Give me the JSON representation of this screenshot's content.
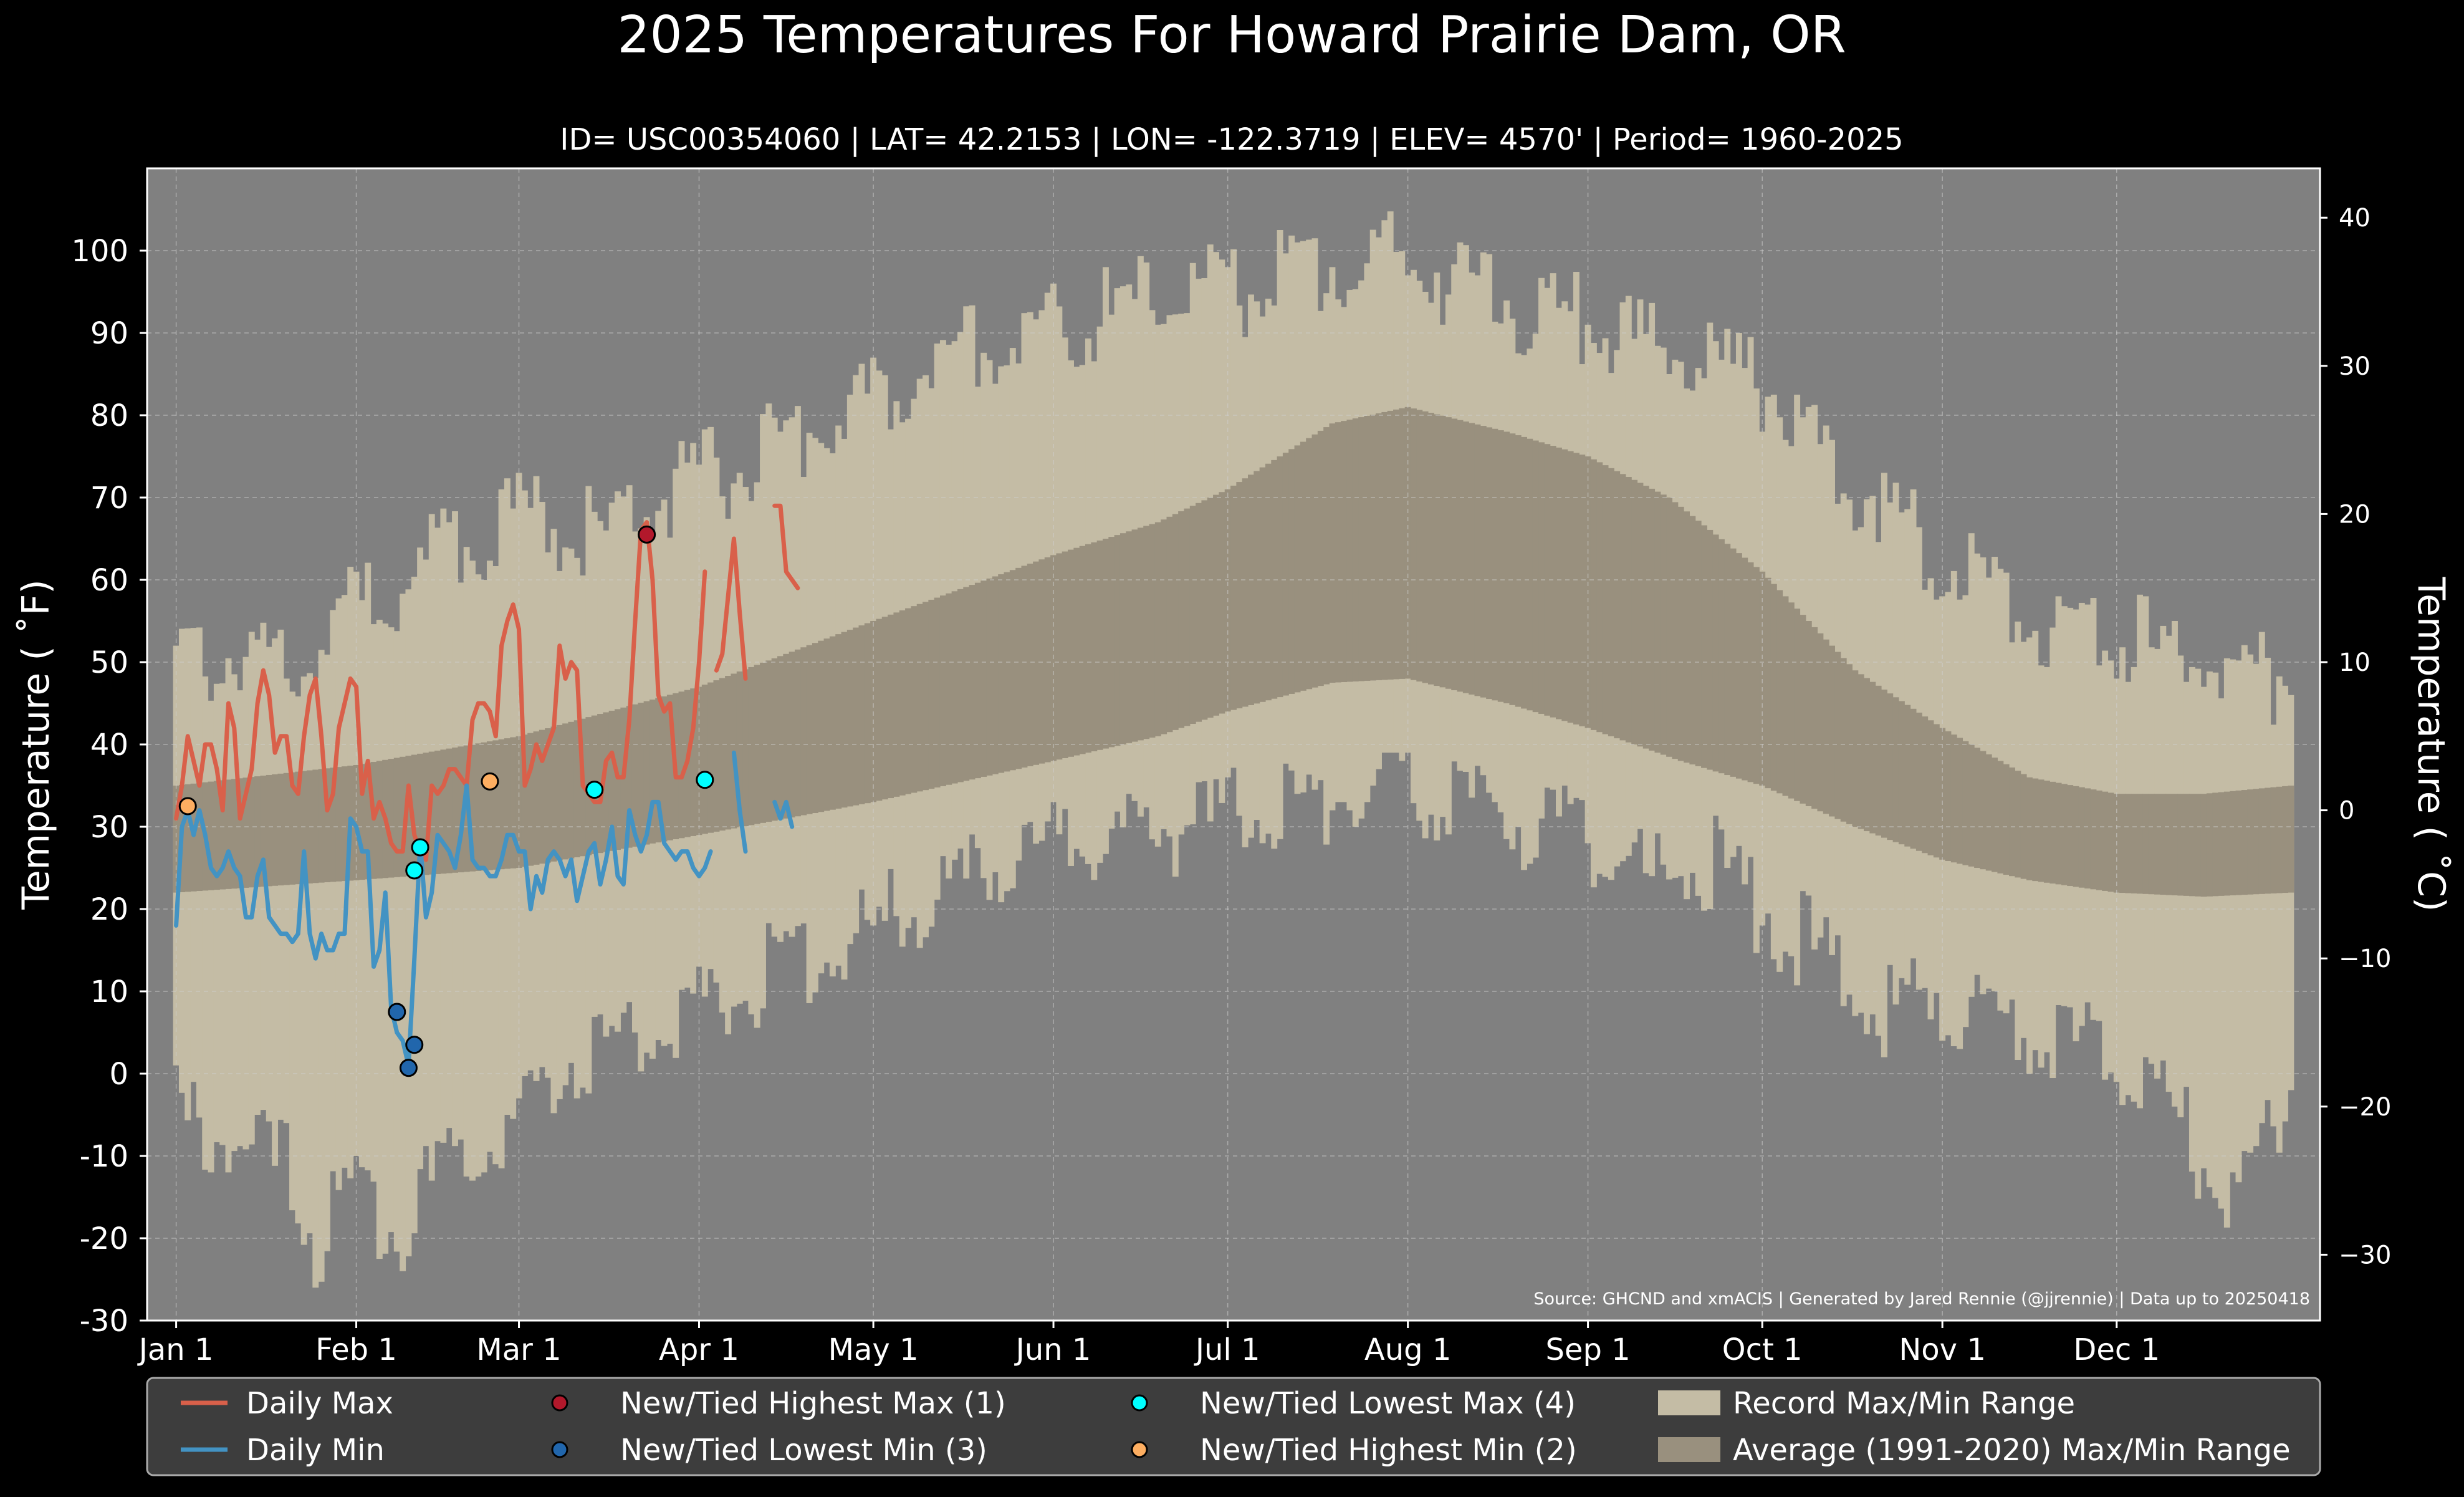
{
  "chart_data": {
    "type": "line",
    "title": "2025 Temperatures For Howard Prairie Dam, OR",
    "subtitle": "ID= USC00354060 | LAT= 42.2153 | LON= -122.3719 | ELEV= 4570' | Period= 1960-2025",
    "ylabel_left": "Temperature ( ˚F)",
    "ylabel_right": "Temperature ( ˚C)",
    "source": "Source: GHCND and xmACIS | Generated by Jared Rennie (@jjrennie) | Data up to 20250418",
    "ylim_f": [
      -30,
      110
    ],
    "yticks_f": [
      -30,
      -20,
      -10,
      0,
      10,
      20,
      30,
      40,
      50,
      60,
      70,
      80,
      90,
      100
    ],
    "ytick_labels_f": [
      "-30",
      "-20",
      "-10",
      "0",
      "10",
      "20",
      "30",
      "40",
      "50",
      "60",
      "70",
      "80",
      "90",
      "100"
    ],
    "yticks_c": [
      -30,
      -20,
      -10,
      0,
      10,
      20,
      30,
      40
    ],
    "ytick_labels_c": [
      "−30",
      "−20",
      "−10",
      "0",
      "10",
      "20",
      "30",
      "40"
    ],
    "xlim_day": [
      -4,
      370
    ],
    "xticks_day": [
      1,
      32,
      60,
      91,
      121,
      152,
      182,
      213,
      244,
      274,
      305,
      335
    ],
    "xtick_labels": [
      "Jan 1",
      "Feb 1",
      "Mar 1",
      "Apr 1",
      "May 1",
      "Jun 1",
      "Jul 1",
      "Aug 1",
      "Sep 1",
      "Oct 1",
      "Nov 1",
      "Dec 1"
    ],
    "grid": true,
    "legend_position": "bottom",
    "colors": {
      "background": "#000000",
      "plot_background": "#808080",
      "record_range": "#c4bca5",
      "average_range": "#99907e",
      "daily_max": "#d9604a",
      "daily_min": "#4393c3",
      "highest_max": "#b2182b",
      "lowest_min": "#2166ac",
      "lowest_max": "#00ffff",
      "highest_min": "#fdae61",
      "legend_bg": "#3d3d3d"
    },
    "record_max_anchors": [
      [
        1,
        50
      ],
      [
        20,
        51
      ],
      [
        32,
        56
      ],
      [
        45,
        63
      ],
      [
        60,
        68
      ],
      [
        75,
        66
      ],
      [
        91,
        72
      ],
      [
        105,
        76
      ],
      [
        121,
        82
      ],
      [
        135,
        88
      ],
      [
        152,
        90
      ],
      [
        170,
        94
      ],
      [
        182,
        95
      ],
      [
        200,
        98
      ],
      [
        213,
        99
      ],
      [
        225,
        95
      ],
      [
        244,
        91
      ],
      [
        258,
        88
      ],
      [
        274,
        84
      ],
      [
        290,
        72
      ],
      [
        305,
        63
      ],
      [
        320,
        56
      ],
      [
        335,
        53
      ],
      [
        350,
        50
      ],
      [
        365,
        48
      ]
    ],
    "record_min_anchors": [
      [
        1,
        -5
      ],
      [
        10,
        -8
      ],
      [
        20,
        -12
      ],
      [
        25,
        -20
      ],
      [
        32,
        -15
      ],
      [
        40,
        -18
      ],
      [
        50,
        -10
      ],
      [
        60,
        -5
      ],
      [
        70,
        2
      ],
      [
        80,
        5
      ],
      [
        91,
        8
      ],
      [
        105,
        13
      ],
      [
        121,
        18
      ],
      [
        135,
        22
      ],
      [
        152,
        28
      ],
      [
        165,
        29
      ],
      [
        182,
        31
      ],
      [
        200,
        34
      ],
      [
        213,
        34
      ],
      [
        228,
        32
      ],
      [
        244,
        28
      ],
      [
        255,
        24
      ],
      [
        265,
        26
      ],
      [
        274,
        20
      ],
      [
        285,
        14
      ],
      [
        295,
        8
      ],
      [
        305,
        10
      ],
      [
        320,
        5
      ],
      [
        335,
        3
      ],
      [
        345,
        -5
      ],
      [
        355,
        -18
      ],
      [
        365,
        0
      ]
    ],
    "avg_max_anchors": [
      [
        1,
        35
      ],
      [
        32,
        37.5
      ],
      [
        60,
        41
      ],
      [
        91,
        47
      ],
      [
        121,
        55
      ],
      [
        152,
        63
      ],
      [
        170,
        67
      ],
      [
        182,
        71
      ],
      [
        200,
        79
      ],
      [
        213,
        81
      ],
      [
        230,
        78
      ],
      [
        244,
        75
      ],
      [
        258,
        70
      ],
      [
        274,
        61
      ],
      [
        290,
        49
      ],
      [
        305,
        42
      ],
      [
        320,
        36
      ],
      [
        335,
        34
      ],
      [
        350,
        34
      ],
      [
        365,
        35
      ]
    ],
    "avg_min_anchors": [
      [
        1,
        22
      ],
      [
        32,
        23.5
      ],
      [
        60,
        25
      ],
      [
        91,
        29
      ],
      [
        121,
        33
      ],
      [
        152,
        38
      ],
      [
        170,
        41
      ],
      [
        182,
        44
      ],
      [
        200,
        47.5
      ],
      [
        213,
        48
      ],
      [
        230,
        45
      ],
      [
        244,
        42
      ],
      [
        260,
        38
      ],
      [
        274,
        35
      ],
      [
        290,
        30
      ],
      [
        305,
        26
      ],
      [
        320,
        23.5
      ],
      [
        335,
        22
      ],
      [
        350,
        21.5
      ],
      [
        365,
        22
      ]
    ],
    "series": [
      {
        "name": "Daily Max",
        "x": [
          1,
          2,
          3,
          4,
          5,
          6,
          7,
          8,
          9,
          10,
          11,
          12,
          13,
          14,
          15,
          16,
          17,
          18,
          19,
          20,
          21,
          22,
          23,
          24,
          25,
          26,
          27,
          28,
          29,
          30,
          31,
          32,
          33,
          34,
          35,
          36,
          37,
          38,
          39,
          40,
          41,
          42,
          43,
          44,
          45,
          46,
          47,
          48,
          49,
          50,
          51,
          52,
          53,
          54,
          55,
          56,
          57,
          58,
          59,
          60,
          61,
          62,
          63,
          64,
          65,
          66,
          67,
          68,
          69,
          70,
          71,
          72,
          73,
          74,
          75,
          76,
          77,
          78,
          79,
          80,
          81,
          82,
          83,
          84,
          85,
          86,
          87,
          88,
          89,
          90,
          91,
          92,
          93,
          94,
          95,
          96,
          97,
          98,
          99,
          100,
          101,
          102,
          103,
          104,
          105,
          106,
          107,
          108
        ],
        "y": [
          31,
          35,
          41,
          38,
          35,
          40,
          40,
          37,
          32,
          45,
          42,
          31,
          34,
          37,
          45,
          49,
          46,
          39,
          41,
          41,
          35,
          34,
          41,
          46,
          48,
          41,
          32,
          34,
          42,
          45,
          48,
          47,
          34,
          38,
          31,
          33,
          31,
          28,
          27,
          27,
          35,
          29,
          27,
          26,
          35,
          34,
          35,
          37,
          37,
          36,
          35,
          43,
          45,
          45,
          44,
          41,
          52,
          55,
          57,
          54,
          35,
          37,
          40,
          38,
          40,
          42,
          52,
          48,
          50,
          49,
          35,
          34,
          33,
          33,
          38,
          39,
          36,
          36,
          43,
          55,
          66,
          67,
          60,
          46,
          44,
          45,
          36,
          36,
          38,
          42,
          50,
          61,
          null,
          49,
          51,
          58,
          65,
          56,
          48,
          null,
          null,
          null,
          null,
          69,
          69,
          61,
          60,
          59
        ]
      },
      {
        "name": "Daily Min",
        "x": [
          1,
          2,
          3,
          4,
          5,
          6,
          7,
          8,
          9,
          10,
          11,
          12,
          13,
          14,
          15,
          16,
          17,
          18,
          19,
          20,
          21,
          22,
          23,
          24,
          25,
          26,
          27,
          28,
          29,
          30,
          31,
          32,
          33,
          34,
          35,
          36,
          37,
          38,
          39,
          40,
          41,
          42,
          43,
          44,
          45,
          46,
          47,
          48,
          49,
          50,
          51,
          52,
          53,
          54,
          55,
          56,
          57,
          58,
          59,
          60,
          61,
          62,
          63,
          64,
          65,
          66,
          67,
          68,
          69,
          70,
          71,
          72,
          73,
          74,
          75,
          76,
          77,
          78,
          79,
          80,
          81,
          82,
          83,
          84,
          85,
          86,
          87,
          88,
          89,
          90,
          91,
          92,
          93,
          94,
          95,
          96,
          97,
          98,
          99,
          100,
          101,
          102,
          103,
          104,
          105,
          106,
          107,
          108
        ],
        "y": [
          18,
          30,
          32,
          29,
          32,
          29,
          25,
          24,
          25,
          27,
          25,
          24,
          19,
          19,
          24,
          26,
          19,
          18,
          17,
          17,
          16,
          17,
          27,
          17,
          14,
          17,
          15,
          15,
          17,
          17,
          31,
          30,
          27,
          27,
          13,
          15,
          22,
          8,
          5,
          4,
          1,
          14,
          28,
          19,
          22,
          29,
          28,
          27,
          25,
          29,
          35,
          26,
          25,
          25,
          24,
          24,
          26,
          29,
          29,
          27,
          27,
          20,
          24,
          22,
          26,
          27,
          26,
          24,
          26,
          21,
          24,
          27,
          28,
          23,
          26,
          30,
          24,
          23,
          32,
          29,
          27,
          29,
          33,
          33,
          28,
          27,
          26,
          27,
          27,
          25,
          24,
          25,
          27,
          null,
          29,
          null,
          39,
          32,
          27,
          null,
          null,
          null,
          null,
          33,
          31,
          33,
          30,
          null
        ]
      },
      {
        "name": "New/Tied Highest Max (1)",
        "type": "scatter",
        "x": [
          82
        ],
        "y": [
          65.5
        ]
      },
      {
        "name": "New/Tied Lowest Min (3)",
        "type": "scatter",
        "x": [
          39,
          41,
          42
        ],
        "y": [
          7.5,
          0.7,
          3.5
        ]
      },
      {
        "name": "New/Tied Lowest Max (4)",
        "type": "scatter",
        "x": [
          42,
          43,
          73,
          92
        ],
        "y": [
          24.7,
          27.5,
          34.5,
          35.7
        ]
      },
      {
        "name": "New/Tied Highest Min (2)",
        "type": "scatter",
        "x": [
          3,
          55
        ],
        "y": [
          32.5,
          35.5
        ]
      }
    ],
    "legend": [
      {
        "label": "Daily Max",
        "kind": "line",
        "color": "#d9604a"
      },
      {
        "label": "Daily Min",
        "kind": "line",
        "color": "#4393c3"
      },
      {
        "label": "New/Tied Highest Max (1)",
        "kind": "marker",
        "color": "#b2182b"
      },
      {
        "label": "New/Tied Lowest Min (3)",
        "kind": "marker",
        "color": "#2166ac"
      },
      {
        "label": "New/Tied Lowest Max (4)",
        "kind": "marker",
        "color": "#00ffff"
      },
      {
        "label": "New/Tied Highest Min (2)",
        "kind": "marker",
        "color": "#fdae61"
      },
      {
        "label": "Record Max/Min Range",
        "kind": "patch",
        "color": "#c4bca5"
      },
      {
        "label": "Average (1991-2020) Max/Min Range",
        "kind": "patch",
        "color": "#99907e"
      }
    ]
  }
}
